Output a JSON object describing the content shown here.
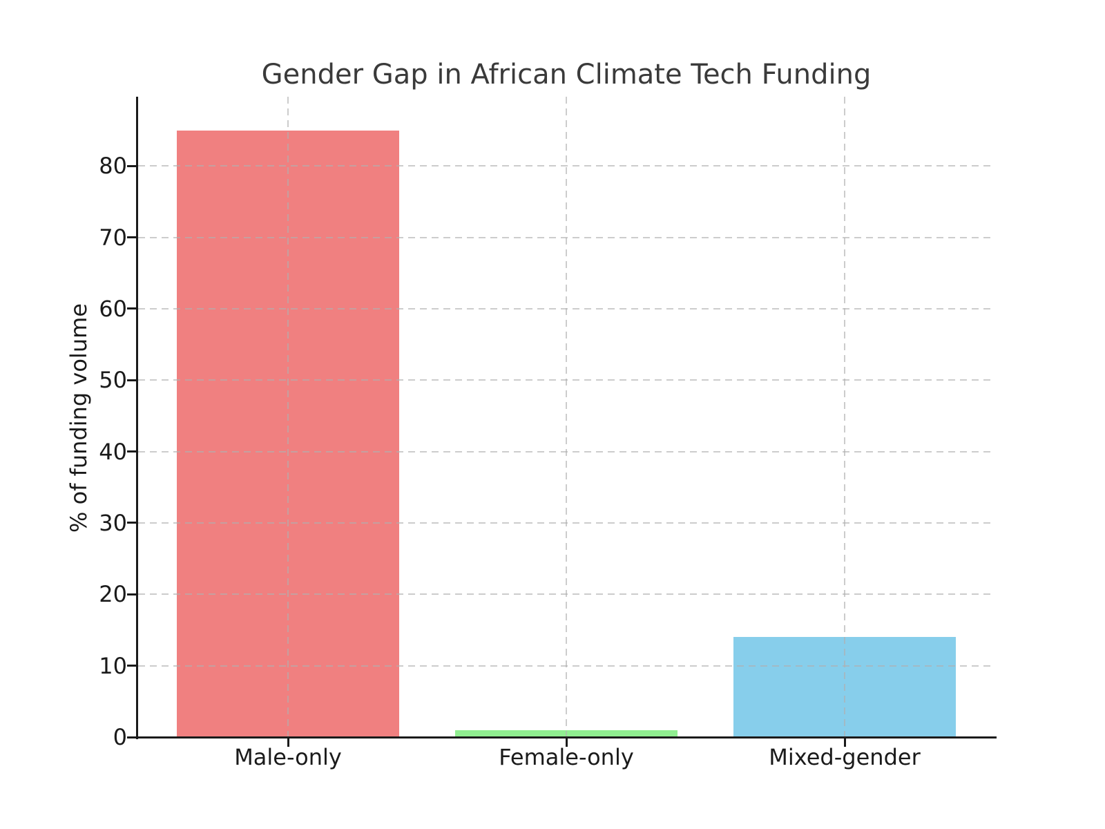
{
  "figure": {
    "title": "Gender Gap in African Climate Tech Funding"
  },
  "chart_data": {
    "type": "bar",
    "title": "Gender Gap in African Climate Tech Funding",
    "xlabel": "",
    "ylabel": "% of funding volume",
    "categories": [
      "Male-only",
      "Female-only",
      "Mixed-gender"
    ],
    "values": [
      85,
      1,
      14
    ],
    "bar_colors": [
      "#F08080",
      "#90EE90",
      "#87CEEB"
    ],
    "yticks": [
      0,
      10,
      20,
      30,
      40,
      50,
      60,
      70,
      80
    ],
    "ylim": [
      0,
      89.7
    ],
    "grid": true,
    "grid_style": "dashed",
    "grid_color": "#b0b0b0",
    "grid_axis": "both",
    "legend": "none",
    "background_color": "#ffffff"
  }
}
